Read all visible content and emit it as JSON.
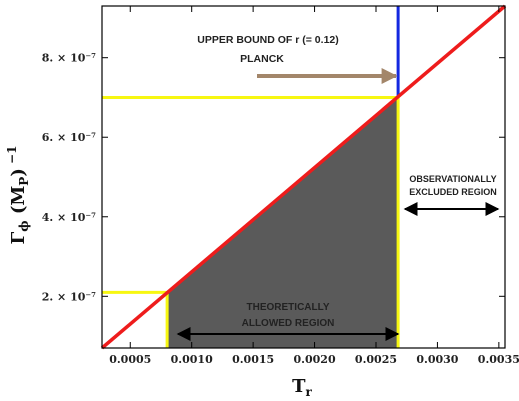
{
  "chart_data": {
    "type": "line",
    "title": "",
    "xlabel": "T_r",
    "ylabel": "Γ_ϕ (M_P)^−1",
    "xlim": [
      0.00027,
      0.00355
    ],
    "ylim": [
      7e-08,
      9.3e-07
    ],
    "grid": false,
    "x_ticks": [
      0.0005,
      0.001,
      0.0015,
      0.002,
      0.0025,
      0.003,
      0.0035
    ],
    "x_tick_labels": [
      "0.0005",
      "0.0010",
      "0.0015",
      "0.0020",
      "0.0025",
      "0.0030",
      "0.0035"
    ],
    "y_ticks": [
      2e-07,
      4e-07,
      6e-07,
      8e-07
    ],
    "y_tick_labels": [
      "2. × 10⁻⁷",
      "4. × 10⁻⁷",
      "6. × 10⁻⁷",
      "8. × 10⁻⁷"
    ],
    "series": [
      {
        "color": "#ee1c1c",
        "x": [
          0.00027,
          0.00355
        ],
        "y": [
          7e-08,
          9.3e-07
        ]
      }
    ],
    "reference_lines": {
      "lower_x": 0.0008,
      "lower_y": 2.1e-07,
      "upper_x": 0.00268,
      "upper_y": 7e-07,
      "line_color": "#f7f711",
      "bound_color": "#1428e0"
    },
    "shaded_region": {
      "x_from": 0.0008,
      "x_to": 0.00268,
      "fill": "#5a5a5a"
    },
    "annotations": {
      "upper_bound_line1": "UPPER BOUND OF r (= 0.12)",
      "upper_bound_line2": "PLANCK",
      "excluded_line1": "OBSERVATIONALLY",
      "excluded_line2": "EXCLUDED REGION",
      "allowed_line1": "THEORETICALLY",
      "allowed_line2": "ALLOWED REGION",
      "arrow_color": "#a3866a"
    }
  }
}
